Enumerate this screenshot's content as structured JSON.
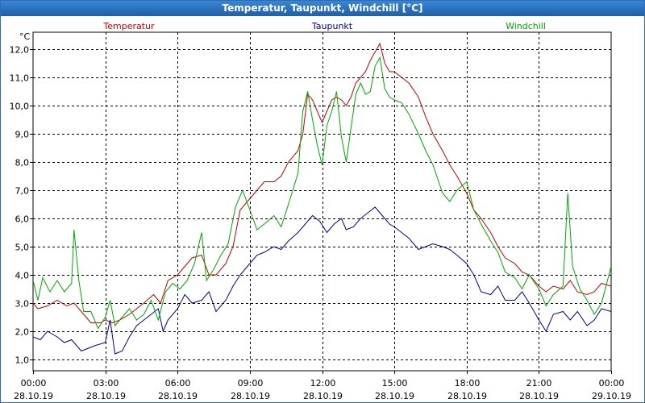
{
  "window": {
    "title": "Temperatur, Taupunkt, Windchill [°C]"
  },
  "chart_data": {
    "type": "line",
    "title": "Temperatur, Taupunkt, Windchill [°C]",
    "ylabel": "°C",
    "ylim": [
      0.6,
      12.6
    ],
    "xlim_hours": [
      0,
      24
    ],
    "grid": true,
    "yticks": [
      {
        "v": 1.0,
        "label": "1,0"
      },
      {
        "v": 2.0,
        "label": "2,0"
      },
      {
        "v": 3.0,
        "label": "3,0"
      },
      {
        "v": 4.0,
        "label": "4,0"
      },
      {
        "v": 5.0,
        "label": "5,0"
      },
      {
        "v": 6.0,
        "label": "6,0"
      },
      {
        "v": 7.0,
        "label": "7,0"
      },
      {
        "v": 8.0,
        "label": "8,0"
      },
      {
        "v": 9.0,
        "label": "9,0"
      },
      {
        "v": 10.0,
        "label": "10,0"
      },
      {
        "v": 11.0,
        "label": "11,0"
      },
      {
        "v": 12.0,
        "label": "12,0"
      }
    ],
    "xticks": [
      {
        "h": 0,
        "time": "00:00",
        "date": "28.10.19"
      },
      {
        "h": 3,
        "time": "03:00",
        "date": "28.10.19"
      },
      {
        "h": 6,
        "time": "06:00",
        "date": "28.10.19"
      },
      {
        "h": 9,
        "time": "09:00",
        "date": "28.10.19"
      },
      {
        "h": 12,
        "time": "12:00",
        "date": "28.10.19"
      },
      {
        "h": 15,
        "time": "15:00",
        "date": "28.10.19"
      },
      {
        "h": 18,
        "time": "18:00",
        "date": "28.10.19"
      },
      {
        "h": 21,
        "time": "21:00",
        "date": "28.10.19"
      },
      {
        "h": 24,
        "time": "00:00",
        "date": "29.10.19"
      }
    ],
    "series": [
      {
        "name": "Temperatur",
        "color": "#cc0000",
        "points": [
          [
            0,
            3.0
          ],
          [
            0.2,
            2.8
          ],
          [
            0.6,
            2.9
          ],
          [
            1.0,
            3.1
          ],
          [
            1.4,
            2.9
          ],
          [
            1.7,
            3.0
          ],
          [
            2.0,
            2.7
          ],
          [
            2.4,
            2.3
          ],
          [
            2.8,
            2.3
          ],
          [
            3.0,
            2.4
          ],
          [
            3.3,
            2.3
          ],
          [
            3.6,
            2.4
          ],
          [
            4.0,
            2.6
          ],
          [
            4.3,
            2.8
          ],
          [
            4.6,
            3.0
          ],
          [
            5.0,
            3.3
          ],
          [
            5.3,
            3.0
          ],
          [
            5.6,
            3.8
          ],
          [
            6.0,
            4.0
          ],
          [
            6.3,
            4.3
          ],
          [
            6.6,
            4.6
          ],
          [
            7.0,
            4.7
          ],
          [
            7.3,
            4.0
          ],
          [
            7.6,
            4.0
          ],
          [
            8.0,
            4.4
          ],
          [
            8.3,
            5.0
          ],
          [
            8.6,
            6.3
          ],
          [
            9.0,
            6.7
          ],
          [
            9.3,
            7.0
          ],
          [
            9.6,
            7.3
          ],
          [
            10.0,
            7.3
          ],
          [
            10.3,
            7.5
          ],
          [
            10.6,
            8.0
          ],
          [
            11.0,
            8.4
          ],
          [
            11.2,
            9.0
          ],
          [
            11.4,
            10.4
          ],
          [
            11.6,
            10.2
          ],
          [
            11.8,
            9.8
          ],
          [
            12.0,
            9.4
          ],
          [
            12.2,
            9.8
          ],
          [
            12.4,
            10.2
          ],
          [
            12.6,
            10.3
          ],
          [
            12.8,
            10.2
          ],
          [
            13.0,
            10.0
          ],
          [
            13.2,
            10.3
          ],
          [
            13.4,
            10.8
          ],
          [
            13.6,
            11.0
          ],
          [
            13.8,
            11.2
          ],
          [
            14.0,
            11.6
          ],
          [
            14.2,
            11.9
          ],
          [
            14.4,
            12.2
          ],
          [
            14.6,
            11.5
          ],
          [
            14.8,
            11.2
          ],
          [
            15.0,
            11.2
          ],
          [
            15.3,
            11.0
          ],
          [
            15.6,
            10.8
          ],
          [
            16.0,
            10.3
          ],
          [
            16.3,
            9.6
          ],
          [
            16.6,
            9.0
          ],
          [
            17.0,
            8.4
          ],
          [
            17.3,
            7.9
          ],
          [
            17.6,
            7.5
          ],
          [
            18.0,
            6.9
          ],
          [
            18.3,
            6.3
          ],
          [
            18.6,
            6.0
          ],
          [
            19.0,
            5.5
          ],
          [
            19.3,
            5.0
          ],
          [
            19.6,
            4.6
          ],
          [
            20.0,
            4.4
          ],
          [
            20.3,
            4.1
          ],
          [
            20.6,
            4.0
          ],
          [
            21.0,
            3.6
          ],
          [
            21.3,
            3.4
          ],
          [
            21.6,
            3.6
          ],
          [
            22.0,
            3.5
          ],
          [
            22.3,
            3.8
          ],
          [
            22.6,
            3.4
          ],
          [
            23.0,
            3.3
          ],
          [
            23.3,
            3.4
          ],
          [
            23.6,
            3.7
          ],
          [
            24.0,
            3.6
          ]
        ]
      },
      {
        "name": "Taupunkt",
        "color": "#0000aa",
        "points": [
          [
            0,
            1.8
          ],
          [
            0.3,
            1.7
          ],
          [
            0.6,
            2.0
          ],
          [
            1.0,
            1.8
          ],
          [
            1.3,
            1.6
          ],
          [
            1.6,
            1.7
          ],
          [
            2.0,
            1.3
          ],
          [
            2.3,
            1.4
          ],
          [
            2.6,
            1.5
          ],
          [
            3.0,
            1.6
          ],
          [
            3.2,
            2.4
          ],
          [
            3.4,
            1.2
          ],
          [
            3.7,
            1.3
          ],
          [
            4.0,
            1.8
          ],
          [
            4.3,
            2.2
          ],
          [
            4.6,
            2.4
          ],
          [
            4.9,
            2.6
          ],
          [
            5.2,
            2.8
          ],
          [
            5.4,
            2.0
          ],
          [
            5.6,
            2.4
          ],
          [
            6.0,
            2.8
          ],
          [
            6.3,
            3.3
          ],
          [
            6.6,
            3.0
          ],
          [
            7.0,
            3.1
          ],
          [
            7.3,
            3.4
          ],
          [
            7.6,
            2.7
          ],
          [
            8.0,
            3.1
          ],
          [
            8.3,
            3.6
          ],
          [
            8.6,
            4.0
          ],
          [
            9.0,
            4.4
          ],
          [
            9.3,
            4.7
          ],
          [
            9.6,
            4.8
          ],
          [
            10.0,
            5.0
          ],
          [
            10.3,
            4.9
          ],
          [
            10.6,
            5.2
          ],
          [
            11.0,
            5.5
          ],
          [
            11.3,
            5.8
          ],
          [
            11.6,
            6.1
          ],
          [
            11.9,
            5.9
          ],
          [
            12.2,
            5.5
          ],
          [
            12.5,
            5.8
          ],
          [
            12.8,
            6.0
          ],
          [
            13.0,
            5.6
          ],
          [
            13.3,
            5.7
          ],
          [
            13.6,
            6.0
          ],
          [
            13.9,
            6.2
          ],
          [
            14.2,
            6.4
          ],
          [
            14.5,
            6.1
          ],
          [
            14.8,
            5.8
          ],
          [
            15.0,
            5.7
          ],
          [
            15.3,
            5.5
          ],
          [
            15.6,
            5.3
          ],
          [
            16.0,
            4.9
          ],
          [
            16.3,
            5.0
          ],
          [
            16.6,
            5.1
          ],
          [
            17.0,
            5.0
          ],
          [
            17.3,
            4.9
          ],
          [
            17.6,
            4.7
          ],
          [
            18.0,
            4.4
          ],
          [
            18.3,
            4.0
          ],
          [
            18.6,
            3.4
          ],
          [
            19.0,
            3.3
          ],
          [
            19.3,
            3.6
          ],
          [
            19.6,
            3.1
          ],
          [
            20.0,
            3.1
          ],
          [
            20.3,
            3.4
          ],
          [
            20.6,
            3.0
          ],
          [
            21.0,
            2.4
          ],
          [
            21.3,
            2.0
          ],
          [
            21.6,
            2.6
          ],
          [
            22.0,
            2.7
          ],
          [
            22.3,
            2.4
          ],
          [
            22.6,
            2.7
          ],
          [
            23.0,
            2.2
          ],
          [
            23.3,
            2.4
          ],
          [
            23.6,
            2.8
          ],
          [
            24.0,
            2.7
          ]
        ]
      },
      {
        "name": "Windchill",
        "color": "#00aa00",
        "points": [
          [
            0,
            3.8
          ],
          [
            0.2,
            3.1
          ],
          [
            0.4,
            3.9
          ],
          [
            0.7,
            3.4
          ],
          [
            1.0,
            3.8
          ],
          [
            1.3,
            3.4
          ],
          [
            1.6,
            3.7
          ],
          [
            1.7,
            5.6
          ],
          [
            1.9,
            3.8
          ],
          [
            2.1,
            2.7
          ],
          [
            2.4,
            2.7
          ],
          [
            2.7,
            2.1
          ],
          [
            3.0,
            2.5
          ],
          [
            3.2,
            3.1
          ],
          [
            3.4,
            2.2
          ],
          [
            3.7,
            2.5
          ],
          [
            4.0,
            2.8
          ],
          [
            4.3,
            2.4
          ],
          [
            4.6,
            2.6
          ],
          [
            4.9,
            3.1
          ],
          [
            5.2,
            2.4
          ],
          [
            5.5,
            3.4
          ],
          [
            5.8,
            3.7
          ],
          [
            6.1,
            3.5
          ],
          [
            6.4,
            3.8
          ],
          [
            6.7,
            4.4
          ],
          [
            7.0,
            5.5
          ],
          [
            7.2,
            3.8
          ],
          [
            7.5,
            4.2
          ],
          [
            7.8,
            4.7
          ],
          [
            8.1,
            5.1
          ],
          [
            8.4,
            6.4
          ],
          [
            8.7,
            7.0
          ],
          [
            9.0,
            6.3
          ],
          [
            9.3,
            5.6
          ],
          [
            9.6,
            5.8
          ],
          [
            10.0,
            6.1
          ],
          [
            10.3,
            5.7
          ],
          [
            10.6,
            6.5
          ],
          [
            11.0,
            7.6
          ],
          [
            11.2,
            9.8
          ],
          [
            11.4,
            10.5
          ],
          [
            11.6,
            9.5
          ],
          [
            11.8,
            8.6
          ],
          [
            12.0,
            7.9
          ],
          [
            12.2,
            9.3
          ],
          [
            12.4,
            9.8
          ],
          [
            12.6,
            10.5
          ],
          [
            12.8,
            8.9
          ],
          [
            13.0,
            8.0
          ],
          [
            13.2,
            9.2
          ],
          [
            13.4,
            10.4
          ],
          [
            13.6,
            10.8
          ],
          [
            13.8,
            10.4
          ],
          [
            14.0,
            10.5
          ],
          [
            14.2,
            11.4
          ],
          [
            14.4,
            11.7
          ],
          [
            14.6,
            10.6
          ],
          [
            14.8,
            10.3
          ],
          [
            15.0,
            10.2
          ],
          [
            15.3,
            10.1
          ],
          [
            15.6,
            9.7
          ],
          [
            16.0,
            9.0
          ],
          [
            16.3,
            8.4
          ],
          [
            16.6,
            7.9
          ],
          [
            17.0,
            6.9
          ],
          [
            17.3,
            6.6
          ],
          [
            17.6,
            7.0
          ],
          [
            18.0,
            7.3
          ],
          [
            18.3,
            6.3
          ],
          [
            18.6,
            5.8
          ],
          [
            19.0,
            5.2
          ],
          [
            19.3,
            4.8
          ],
          [
            19.6,
            4.1
          ],
          [
            20.0,
            3.9
          ],
          [
            20.3,
            3.5
          ],
          [
            20.6,
            4.0
          ],
          [
            21.0,
            3.5
          ],
          [
            21.3,
            2.9
          ],
          [
            21.6,
            3.3
          ],
          [
            22.0,
            3.6
          ],
          [
            22.2,
            6.9
          ],
          [
            22.4,
            4.3
          ],
          [
            22.7,
            3.5
          ],
          [
            23.0,
            3.1
          ],
          [
            23.3,
            2.6
          ],
          [
            23.6,
            3.0
          ],
          [
            24.0,
            4.3
          ]
        ]
      }
    ]
  }
}
